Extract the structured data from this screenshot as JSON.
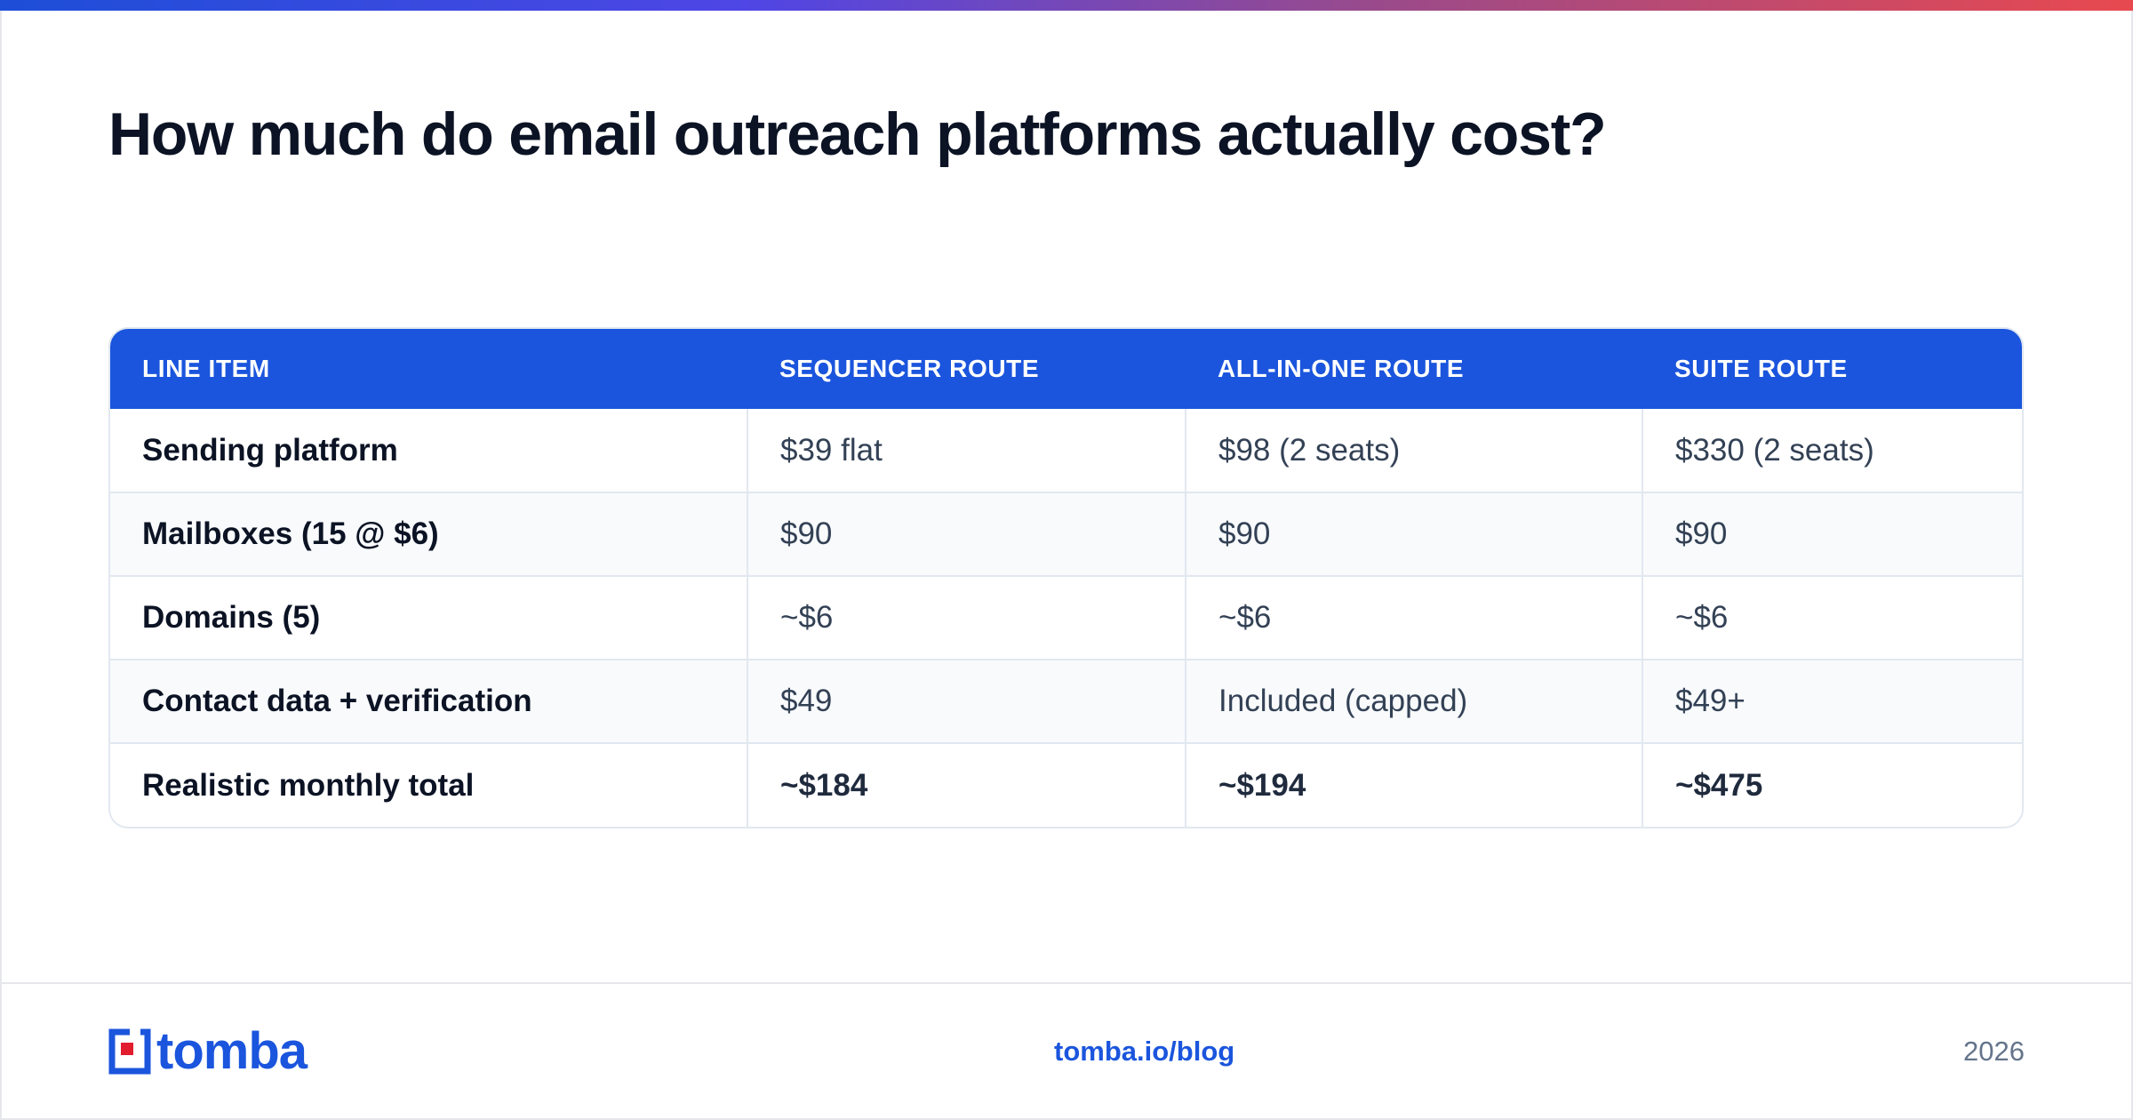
{
  "title": "How much do email outreach platforms actually cost?",
  "table": {
    "headers": [
      "LINE ITEM",
      "SEQUENCER ROUTE",
      "ALL-IN-ONE ROUTE",
      "SUITE ROUTE"
    ],
    "rows": [
      [
        "Sending platform",
        "$39 flat",
        "$98 (2 seats)",
        "$330 (2 seats)"
      ],
      [
        "Mailboxes (15 @ $6)",
        "$90",
        "$90",
        "$90"
      ],
      [
        "Domains (5)",
        "~$6",
        "~$6",
        "~$6"
      ],
      [
        "Contact data + verification",
        "$49",
        "Included (capped)",
        "$49+"
      ],
      [
        "Realistic monthly total",
        "~$184",
        "~$194",
        "~$475"
      ]
    ]
  },
  "footer": {
    "logo_text": "tomba",
    "link": "tomba.io/blog",
    "year": "2026"
  },
  "colors": {
    "accent": "#1b55dd",
    "logo_red": "#e11d2e",
    "gradient_start": "#1d4ed8",
    "gradient_end": "#e8494f"
  }
}
